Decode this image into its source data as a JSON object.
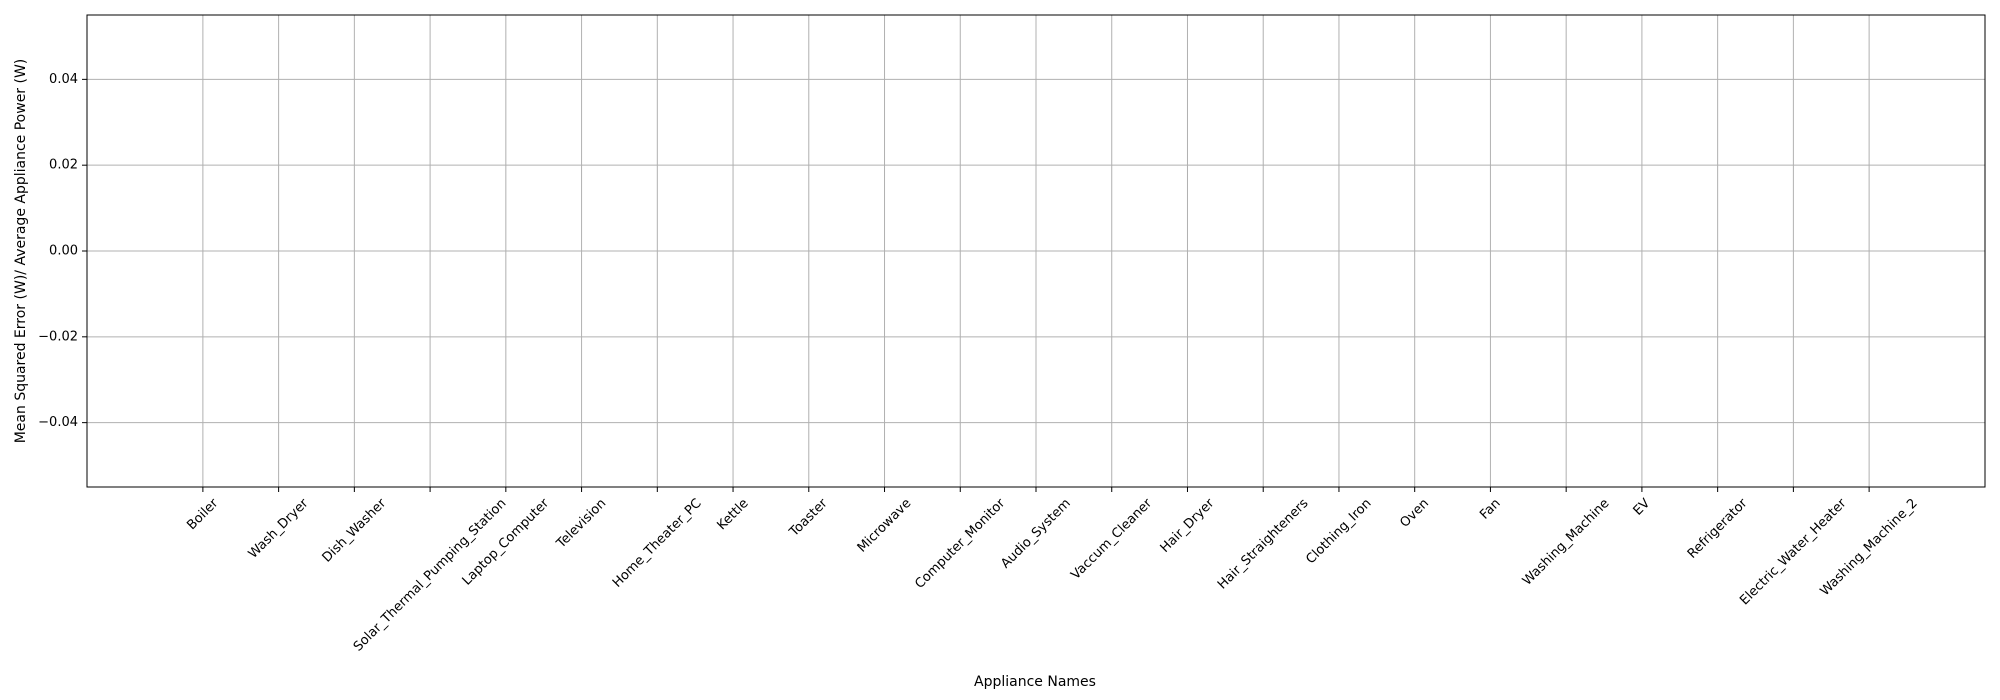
{
  "chart_data": {
    "type": "bar",
    "x_label": "Appliance Names",
    "y_label": "Mean Squared Error (W)/ Average Appliance Power (W)",
    "categories": [
      "Boiler",
      "Wash_Dryer",
      "Dish_Washer",
      "Solar_Thermal_Pumping_Station",
      "Laptop_Computer",
      "Television",
      "Home_Theater_PC",
      "Kettle",
      "Toaster",
      "Microwave",
      "Computer_Monitor",
      "Audio_System",
      "Vaccum_Cleaner",
      "Hair_Dryer",
      "Hair_Straighteners",
      "Clothing_Iron",
      "Oven",
      "Fan",
      "Washing_Machine",
      "EV",
      "Refrigerator",
      "Electric_Water_Heater",
      "Washing_Machine_2"
    ],
    "values": [
      0,
      0,
      0,
      0,
      0,
      0,
      0,
      0,
      0,
      0,
      0,
      0,
      0,
      0,
      0,
      0,
      0,
      0,
      0,
      0,
      0,
      0,
      0
    ],
    "color": "#1f77b4",
    "ylim": [
      -0.055,
      0.055
    ],
    "yticks": [
      {
        "value": -0.04,
        "label": "−0.04"
      },
      {
        "value": -0.02,
        "label": "−0.02"
      },
      {
        "value": 0,
        "label": "0.00"
      },
      {
        "value": 0.02,
        "label": "0.02"
      },
      {
        "value": 0.04,
        "label": "0.04"
      }
    ],
    "grid": true
  }
}
